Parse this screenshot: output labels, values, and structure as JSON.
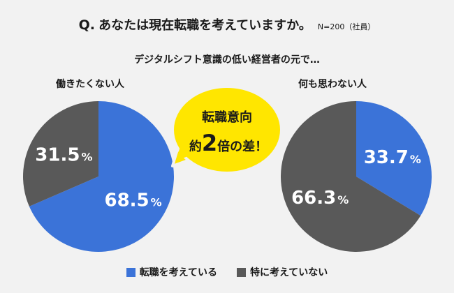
{
  "header": {
    "q_mark": "Q.",
    "question": "あなたは現在転職を考えていますか。",
    "sample": "N=200（社員）"
  },
  "subtitle": "デジタルシフト意識の低い経営者の元で…",
  "callout": {
    "line1": "転職意向",
    "prefix": "約",
    "number": "2",
    "suffix": "倍の差！"
  },
  "colors": {
    "considering": "#3b73d8",
    "not_considering": "#595959",
    "bubble": "#ffe600",
    "background": "#f2f2f2"
  },
  "chart_data": [
    {
      "type": "pie",
      "title": "働きたくない人",
      "slices": [
        {
          "label": "転職を考えている",
          "value": 68.5,
          "display": "68.5"
        },
        {
          "label": "特に考えていない",
          "value": 31.5,
          "display": "31.5"
        }
      ],
      "unit": "%"
    },
    {
      "type": "pie",
      "title": "何も思わない人",
      "slices": [
        {
          "label": "転職を考えている",
          "value": 33.7,
          "display": "33.7"
        },
        {
          "label": "特に考えていない",
          "value": 66.3,
          "display": "66.3"
        }
      ],
      "unit": "%"
    }
  ],
  "legend": [
    {
      "label": "転職を考えている",
      "color": "#3b73d8"
    },
    {
      "label": "特に考えていない",
      "color": "#595959"
    }
  ]
}
